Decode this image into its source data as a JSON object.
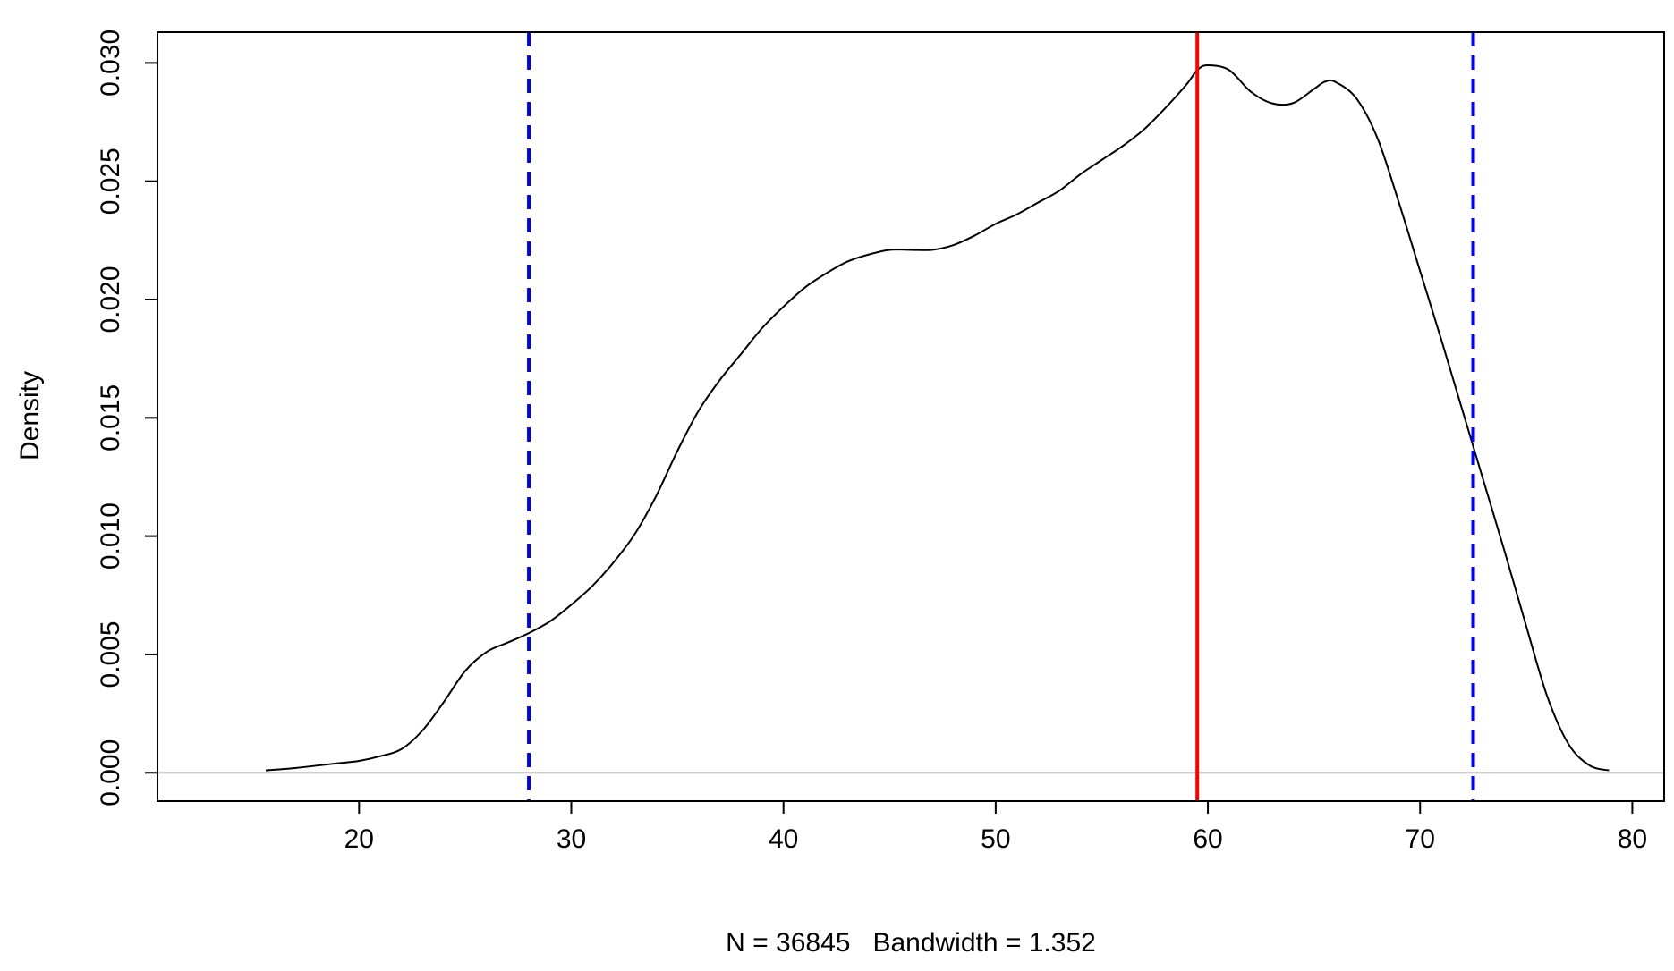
{
  "chart_data": {
    "type": "line",
    "title": "",
    "xlabel": "N = 36845   Bandwidth = 1.352",
    "ylabel": "Density",
    "xlim": [
      10.5,
      81.5
    ],
    "ylim": [
      -0.0012,
      0.0313
    ],
    "x_ticks": [
      20,
      30,
      40,
      50,
      60,
      70,
      80
    ],
    "y_ticks": [
      0.0,
      0.005,
      0.01,
      0.015,
      0.02,
      0.025,
      0.03
    ],
    "y_tick_labels": [
      "0.000",
      "0.005",
      "0.010",
      "0.015",
      "0.020",
      "0.025",
      "0.030"
    ],
    "grid": false,
    "baseline": {
      "y": 0,
      "color": "#bebebe"
    },
    "series": [
      {
        "color": "#000000",
        "x": [
          15.6,
          17,
          18,
          19,
          20,
          21,
          22,
          23,
          24,
          25,
          26,
          27,
          28,
          29,
          30,
          31,
          32,
          33,
          34,
          35,
          36,
          37,
          38,
          39,
          40,
          41,
          42,
          43,
          44,
          45,
          46,
          47,
          48,
          49,
          50,
          51,
          52,
          53,
          54,
          55,
          56,
          57,
          58,
          59,
          59.5,
          60,
          61,
          62,
          63,
          64,
          65,
          65.5,
          66,
          67,
          68,
          69,
          70,
          71,
          72,
          73,
          74,
          75,
          76,
          77,
          78,
          78.9
        ],
        "y": [
          0.0001,
          0.0002,
          0.0003,
          0.0004,
          0.0005,
          0.0007,
          0.001,
          0.0018,
          0.003,
          0.0043,
          0.0051,
          0.0055,
          0.0059,
          0.0064,
          0.0071,
          0.0079,
          0.0089,
          0.0101,
          0.0117,
          0.0136,
          0.0153,
          0.0166,
          0.0177,
          0.0188,
          0.0197,
          0.0205,
          0.0211,
          0.0216,
          0.0219,
          0.0221,
          0.0221,
          0.0221,
          0.0223,
          0.0227,
          0.0232,
          0.0236,
          0.0241,
          0.0246,
          0.0253,
          0.0259,
          0.0265,
          0.0272,
          0.0281,
          0.0291,
          0.0297,
          0.0299,
          0.0297,
          0.0288,
          0.0283,
          0.0283,
          0.0289,
          0.0292,
          0.0292,
          0.0285,
          0.0268,
          0.0241,
          0.0212,
          0.0183,
          0.0153,
          0.0123,
          0.0093,
          0.0062,
          0.0032,
          0.0012,
          0.0003,
          0.0001
        ]
      }
    ],
    "vlines": [
      {
        "x": 28.0,
        "color": "#0000ff",
        "style": "dashed"
      },
      {
        "x": 59.5,
        "color": "#ff0000",
        "style": "solid"
      },
      {
        "x": 72.5,
        "color": "#0000ff",
        "style": "dashed"
      }
    ]
  }
}
